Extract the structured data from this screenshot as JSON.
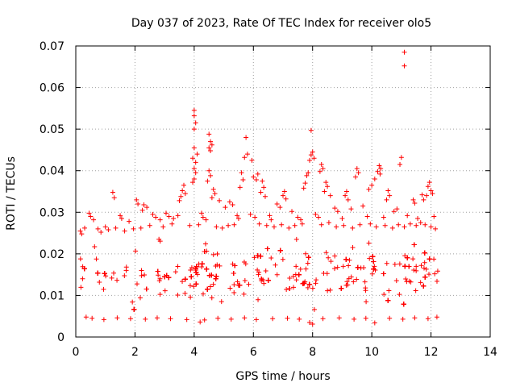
{
  "chart_data": {
    "type": "scatter",
    "title": "Day 037 of 2023, Rate Of TEC Index for receiver olo5",
    "xlabel": "GPS time / hours",
    "ylabel": "ROTI / TECUs",
    "xlim": [
      0,
      14
    ],
    "ylim": [
      0,
      0.07
    ],
    "xticks": [
      0,
      2,
      4,
      6,
      8,
      10,
      12,
      14
    ],
    "yticks": [
      0,
      0.01,
      0.02,
      0.03,
      0.04,
      0.05,
      0.06,
      0.07
    ],
    "xtick_labels": [
      "0",
      "2",
      "4",
      "6",
      "8",
      "10",
      "12",
      "14"
    ],
    "ytick_labels": [
      "0",
      "0.01",
      "0.02",
      "0.03",
      "0.04",
      "0.05",
      "0.06",
      "0.07"
    ],
    "grid": true,
    "marker": "+",
    "color": "#ff0000",
    "dense_band": {
      "x_range": [
        0,
        12.25
      ],
      "y_range": [
        0.004,
        0.025
      ]
    },
    "series": [
      {
        "name": "ROTI",
        "points": [
          [
            11.1,
            0.0685
          ],
          [
            11.1,
            0.0652
          ],
          [
            4.0,
            0.0545
          ],
          [
            4.0,
            0.0532
          ],
          [
            4.05,
            0.0515
          ],
          [
            4.0,
            0.05
          ],
          [
            7.95,
            0.0497
          ],
          [
            5.75,
            0.048
          ],
          [
            4.5,
            0.0488
          ],
          [
            4.55,
            0.047
          ],
          [
            4.5,
            0.0455
          ],
          [
            4.6,
            0.0462
          ],
          [
            4.55,
            0.0448
          ],
          [
            4.0,
            0.0455
          ],
          [
            4.1,
            0.044
          ],
          [
            3.95,
            0.043
          ],
          [
            4.05,
            0.042
          ],
          [
            8.0,
            0.0445
          ],
          [
            7.95,
            0.0438
          ],
          [
            8.05,
            0.043
          ],
          [
            7.9,
            0.0425
          ],
          [
            5.8,
            0.044
          ],
          [
            5.7,
            0.0432
          ],
          [
            5.95,
            0.0425
          ],
          [
            11.0,
            0.0432
          ],
          [
            10.95,
            0.0415
          ],
          [
            10.25,
            0.0412
          ],
          [
            10.3,
            0.0405
          ],
          [
            10.2,
            0.0398
          ],
          [
            10.28,
            0.0392
          ],
          [
            9.5,
            0.0405
          ],
          [
            9.55,
            0.0395
          ],
          [
            9.45,
            0.0385
          ],
          [
            8.3,
            0.0415
          ],
          [
            8.35,
            0.0405
          ],
          [
            8.25,
            0.0398
          ],
          [
            4.0,
            0.0405
          ],
          [
            4.05,
            0.0395
          ],
          [
            4.0,
            0.038
          ],
          [
            3.95,
            0.0372
          ],
          [
            4.5,
            0.04
          ],
          [
            4.55,
            0.0388
          ],
          [
            4.45,
            0.0375
          ],
          [
            6.15,
            0.0392
          ],
          [
            6.0,
            0.0385
          ],
          [
            6.1,
            0.0378
          ],
          [
            7.85,
            0.0395
          ],
          [
            7.8,
            0.0388
          ],
          [
            7.75,
            0.037
          ],
          [
            7.7,
            0.0358
          ],
          [
            3.65,
            0.0365
          ],
          [
            3.6,
            0.0352
          ],
          [
            3.7,
            0.0345
          ],
          [
            5.6,
            0.0395
          ],
          [
            5.65,
            0.0378
          ],
          [
            5.55,
            0.036
          ],
          [
            10.1,
            0.038
          ],
          [
            10.0,
            0.0365
          ],
          [
            9.9,
            0.0355
          ],
          [
            11.95,
            0.0372
          ],
          [
            11.9,
            0.0362
          ],
          [
            12.0,
            0.0352
          ],
          [
            12.05,
            0.0345
          ],
          [
            11.85,
            0.034
          ],
          [
            8.45,
            0.0372
          ],
          [
            8.5,
            0.0362
          ],
          [
            8.4,
            0.035
          ],
          [
            8.6,
            0.034
          ],
          [
            6.3,
            0.0375
          ],
          [
            6.35,
            0.036
          ],
          [
            6.25,
            0.0348
          ],
          [
            6.4,
            0.0338
          ],
          [
            1.25,
            0.0348
          ],
          [
            1.3,
            0.0335
          ],
          [
            4.65,
            0.0355
          ],
          [
            4.7,
            0.0345
          ],
          [
            4.6,
            0.0335
          ],
          [
            9.15,
            0.035
          ],
          [
            9.1,
            0.034
          ],
          [
            9.2,
            0.033
          ],
          [
            10.55,
            0.0352
          ],
          [
            10.6,
            0.034
          ],
          [
            10.5,
            0.033
          ],
          [
            7.05,
            0.035
          ],
          [
            7.0,
            0.034
          ],
          [
            7.1,
            0.0332
          ],
          [
            3.55,
            0.0338
          ],
          [
            3.5,
            0.0328
          ],
          [
            2.05,
            0.033
          ],
          [
            2.1,
            0.032
          ],
          [
            2.3,
            0.0318
          ],
          [
            2.4,
            0.0312
          ],
          [
            2.25,
            0.0305
          ],
          [
            11.4,
            0.033
          ],
          [
            11.45,
            0.0322
          ],
          [
            11.7,
            0.0342
          ],
          [
            11.75,
            0.033
          ],
          [
            4.85,
            0.0328
          ],
          [
            5.2,
            0.0325
          ],
          [
            5.3,
            0.0318
          ],
          [
            5.05,
            0.0312
          ],
          [
            6.8,
            0.032
          ],
          [
            6.9,
            0.0312
          ],
          [
            7.3,
            0.0302
          ],
          [
            8.75,
            0.031
          ],
          [
            8.85,
            0.0302
          ],
          [
            9.3,
            0.0308
          ],
          [
            9.7,
            0.0315
          ],
          [
            10.75,
            0.0302
          ],
          [
            10.85,
            0.0308
          ],
          [
            0.45,
            0.0298
          ],
          [
            0.5,
            0.029
          ],
          [
            0.6,
            0.0282
          ],
          [
            1.5,
            0.0292
          ],
          [
            1.55,
            0.0285
          ],
          [
            1.8,
            0.0278
          ],
          [
            2.6,
            0.0295
          ],
          [
            2.7,
            0.0288
          ],
          [
            2.85,
            0.0282
          ],
          [
            3.05,
            0.0298
          ],
          [
            3.15,
            0.029
          ],
          [
            3.3,
            0.0285
          ],
          [
            3.45,
            0.0292
          ],
          [
            4.25,
            0.0298
          ],
          [
            4.3,
            0.0288
          ],
          [
            4.4,
            0.0282
          ],
          [
            5.45,
            0.0292
          ],
          [
            5.5,
            0.0285
          ],
          [
            5.9,
            0.0295
          ],
          [
            6.05,
            0.0288
          ],
          [
            6.55,
            0.0292
          ],
          [
            6.6,
            0.0282
          ],
          [
            7.5,
            0.0288
          ],
          [
            7.6,
            0.0282
          ],
          [
            8.1,
            0.0295
          ],
          [
            8.2,
            0.0288
          ],
          [
            9.0,
            0.0285
          ],
          [
            9.85,
            0.029
          ],
          [
            10.4,
            0.0288
          ],
          [
            11.2,
            0.0292
          ],
          [
            11.55,
            0.0285
          ],
          [
            12.1,
            0.029
          ],
          [
            0.15,
            0.0255
          ],
          [
            0.2,
            0.0248
          ],
          [
            0.3,
            0.0262
          ],
          [
            0.75,
            0.026
          ],
          [
            0.85,
            0.0252
          ],
          [
            1.0,
            0.0265
          ],
          [
            1.1,
            0.0258
          ],
          [
            1.35,
            0.0262
          ],
          [
            1.65,
            0.0255
          ],
          [
            1.95,
            0.026
          ],
          [
            2.2,
            0.0262
          ],
          [
            2.5,
            0.0268
          ],
          [
            2.95,
            0.0265
          ],
          [
            3.25,
            0.0272
          ],
          [
            3.85,
            0.0268
          ],
          [
            4.15,
            0.027
          ],
          [
            4.75,
            0.0265
          ],
          [
            4.95,
            0.0262
          ],
          [
            5.15,
            0.0268
          ],
          [
            5.35,
            0.027
          ],
          [
            6.2,
            0.0272
          ],
          [
            6.45,
            0.0268
          ],
          [
            6.7,
            0.0265
          ],
          [
            6.95,
            0.027
          ],
          [
            7.2,
            0.0262
          ],
          [
            7.4,
            0.0268
          ],
          [
            7.65,
            0.0272
          ],
          [
            8.3,
            0.027
          ],
          [
            8.55,
            0.0275
          ],
          [
            8.8,
            0.0265
          ],
          [
            9.05,
            0.0268
          ],
          [
            9.35,
            0.0262
          ],
          [
            9.6,
            0.027
          ],
          [
            9.95,
            0.0272
          ],
          [
            10.15,
            0.0265
          ],
          [
            10.45,
            0.0268
          ],
          [
            10.7,
            0.0262
          ],
          [
            10.9,
            0.027
          ],
          [
            11.1,
            0.0265
          ],
          [
            11.3,
            0.0272
          ],
          [
            11.5,
            0.0268
          ],
          [
            11.65,
            0.0275
          ],
          [
            11.8,
            0.027
          ],
          [
            12.0,
            0.0265
          ],
          [
            12.15,
            0.026
          ],
          [
            0.35,
            0.0048
          ],
          [
            0.55,
            0.0045
          ],
          [
            0.95,
            0.0042
          ],
          [
            1.4,
            0.0046
          ],
          [
            1.85,
            0.0044
          ],
          [
            2.35,
            0.0043
          ],
          [
            2.75,
            0.0046
          ],
          [
            3.2,
            0.0044
          ],
          [
            3.75,
            0.0042
          ],
          [
            4.2,
            0.0036
          ],
          [
            4.35,
            0.0041
          ],
          [
            4.8,
            0.0045
          ],
          [
            5.25,
            0.0043
          ],
          [
            5.7,
            0.0046
          ],
          [
            6.1,
            0.0042
          ],
          [
            6.65,
            0.0044
          ],
          [
            7.15,
            0.0045
          ],
          [
            7.55,
            0.0043
          ],
          [
            7.9,
            0.0035
          ],
          [
            8.0,
            0.0031
          ],
          [
            8.35,
            0.0044
          ],
          [
            8.9,
            0.0046
          ],
          [
            9.4,
            0.0043
          ],
          [
            9.8,
            0.0045
          ],
          [
            10.1,
            0.0034
          ],
          [
            10.6,
            0.0045
          ],
          [
            11.05,
            0.0043
          ],
          [
            11.45,
            0.0046
          ],
          [
            11.9,
            0.0044
          ],
          [
            12.2,
            0.0048
          ]
        ]
      }
    ]
  }
}
